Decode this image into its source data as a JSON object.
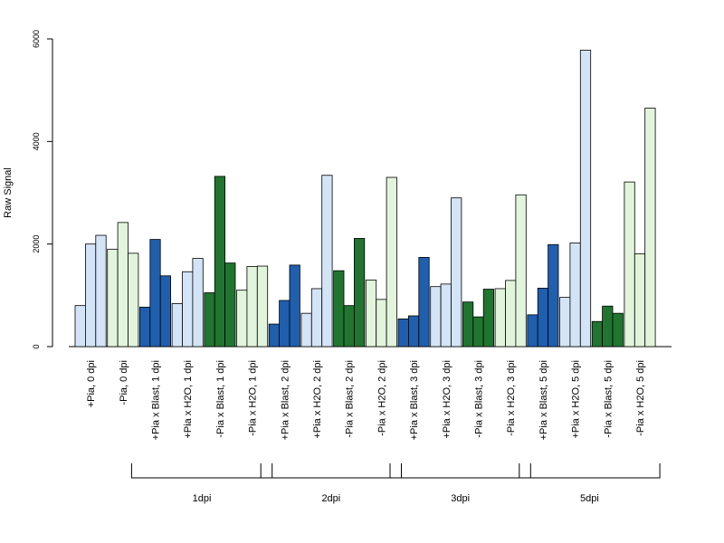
{
  "chart_data": {
    "type": "bar",
    "ylabel": "Raw Signal",
    "xlabel": "",
    "ylim": [
      0,
      6000
    ],
    "yticks": [
      0,
      2000,
      4000,
      6000
    ],
    "grid": false,
    "legend": "none",
    "colors": {
      "light_blue": "#d4e4f7",
      "light_green": "#e2f5dc",
      "dark_blue": "#1f5fae",
      "dark_green": "#207530",
      "stroke": "#000000"
    },
    "categories": [
      {
        "label": "+Pia, 0 dpi",
        "color": "light_blue",
        "values": [
          800,
          2000,
          2170
        ]
      },
      {
        "label": "-Pia, 0 dpi",
        "color": "light_green",
        "values": [
          1900,
          2420,
          1820
        ]
      },
      {
        "label": "+Pia x Blast, 1 dpi",
        "color": "dark_blue",
        "values": [
          770,
          2090,
          1380
        ]
      },
      {
        "label": "+Pia x H2O, 1 dpi",
        "color": "light_blue",
        "values": [
          840,
          1460,
          1720
        ]
      },
      {
        "label": "-Pia x Blast, 1 dpi",
        "color": "dark_green",
        "values": [
          1050,
          3320,
          1630
        ]
      },
      {
        "label": "-Pia x H2O, 1 dpi",
        "color": "light_green",
        "values": [
          1100,
          1560,
          1570
        ]
      },
      {
        "label": "+Pia x Blast, 2 dpi",
        "color": "dark_blue",
        "values": [
          440,
          900,
          1590
        ]
      },
      {
        "label": "+Pia x H2O, 2 dpi",
        "color": "light_blue",
        "values": [
          650,
          1130,
          3340
        ]
      },
      {
        "label": "-Pia x Blast, 2 dpi",
        "color": "dark_green",
        "values": [
          1480,
          800,
          2110
        ]
      },
      {
        "label": "-Pia x H2O, 2 dpi",
        "color": "light_green",
        "values": [
          1300,
          920,
          3300
        ]
      },
      {
        "label": "+Pia x Blast, 3 dpi",
        "color": "dark_blue",
        "values": [
          540,
          600,
          1740
        ]
      },
      {
        "label": "+Pia x H2O, 3 dpi",
        "color": "light_blue",
        "values": [
          1170,
          1220,
          2900
        ]
      },
      {
        "label": "-Pia x Blast, 3 dpi",
        "color": "dark_green",
        "values": [
          870,
          580,
          1120
        ]
      },
      {
        "label": "-Pia x H2O, 3 dpi",
        "color": "light_green",
        "values": [
          1130,
          1290,
          2960
        ]
      },
      {
        "label": "+Pia x Blast, 5 dpi",
        "color": "dark_blue",
        "values": [
          620,
          1140,
          1990
        ]
      },
      {
        "label": "+Pia x H2O, 5 dpi",
        "color": "light_blue",
        "values": [
          960,
          2020,
          5780
        ]
      },
      {
        "label": "-Pia x Blast, 5 dpi",
        "color": "dark_green",
        "values": [
          490,
          790,
          650
        ]
      },
      {
        "label": "-Pia x H2O, 5 dpi",
        "color": "light_green",
        "values": [
          3210,
          1810,
          4650
        ]
      }
    ],
    "groups": [
      {
        "label": "1dpi",
        "categories": [
          2,
          3,
          4,
          5
        ]
      },
      {
        "label": "2dpi",
        "categories": [
          6,
          7,
          8,
          9
        ]
      },
      {
        "label": "3dpi",
        "categories": [
          10,
          11,
          12,
          13
        ]
      },
      {
        "label": "5dpi",
        "categories": [
          14,
          15,
          16,
          17
        ]
      }
    ]
  }
}
